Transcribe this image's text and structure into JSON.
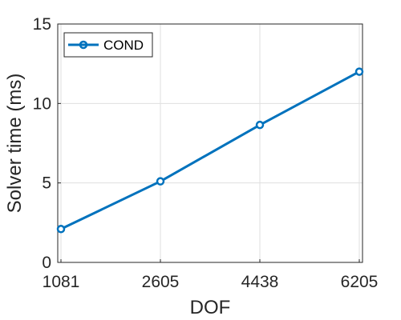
{
  "chart_data": {
    "type": "line",
    "x": [
      1081,
      2605,
      4438,
      6205
    ],
    "xtick_labels": [
      "1081",
      "2605",
      "4438",
      "6205"
    ],
    "yticks": [
      0,
      5,
      10,
      15
    ],
    "ytick_labels": [
      "0",
      "5",
      "10",
      "15"
    ],
    "ylim": [
      0,
      15
    ],
    "xlabel": "DOF",
    "ylabel": "Solver time (ms)",
    "grid": true,
    "legend_position": "top-left",
    "series": [
      {
        "name": "COND",
        "values": [
          2.1,
          5.1,
          8.65,
          12.0
        ],
        "color": "#0072BD",
        "marker": "circle"
      }
    ]
  }
}
